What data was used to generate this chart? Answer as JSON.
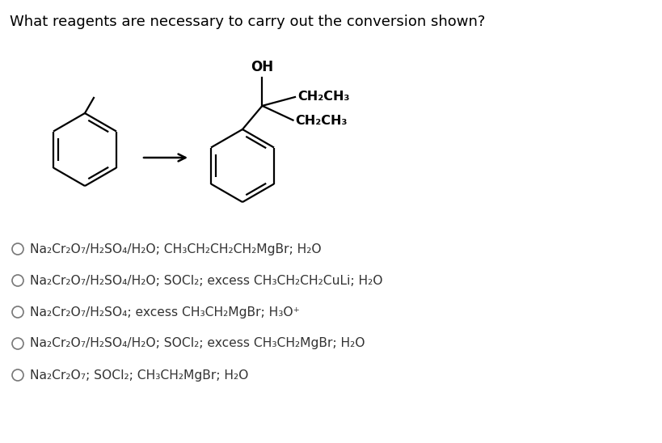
{
  "title": "What reagents are necessary to carry out the conversion shown?",
  "background_color": "#ffffff",
  "text_color": "#000000",
  "options": [
    "Na₂Cr₂O₇/H₂SO₄/H₂O; CH₃CH₂CH₂CH₂MgBr; H₂O",
    "Na₂Cr₂O₇/H₂SO₄/H₂O; SOCl₂; excess CH₃CH₂CH₂CuLi; H₂O",
    "Na₂Cr₂O₇/H₂SO₄; excess CH₃CH₂MgBr; H₃O⁺",
    "Na₂Cr₂O₇/H₂SO₄/H₂O; SOCl₂; excess CH₃CH₂MgBr; H₂O",
    "Na₂Cr₂O₇; SOCl₂; CH₃CH₂MgBr; H₂O"
  ],
  "fig_width": 8.2,
  "fig_height": 5.48,
  "dpi": 100
}
